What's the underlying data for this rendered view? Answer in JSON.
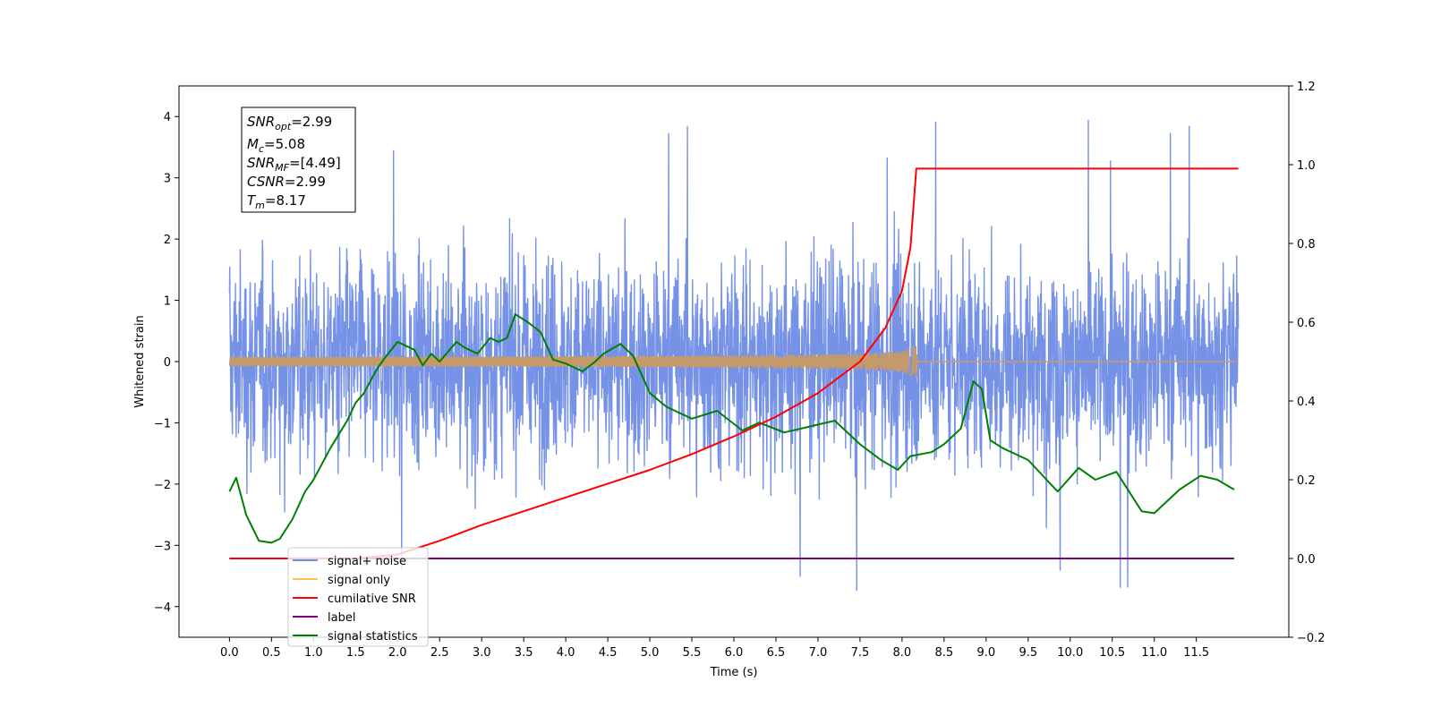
{
  "chart_data": {
    "type": "line",
    "xlabel": "Time (s)",
    "ylabel": "Whitened strain",
    "xlim": [
      -0.6,
      12.6
    ],
    "ylim": [
      -4.5,
      4.5
    ],
    "y2lim": [
      -0.2,
      1.2
    ],
    "grid": false,
    "legend_position": "lower-left",
    "x_ticks": [
      "0.0",
      "0.5",
      "1.0",
      "1.5",
      "2.0",
      "2.5",
      "3.0",
      "3.5",
      "4.0",
      "4.5",
      "5.0",
      "5.5",
      "6.0",
      "6.5",
      "7.0",
      "7.5",
      "8.0",
      "8.5",
      "9.0",
      "9.5",
      "10.0",
      "10.5",
      "11.0",
      "11.5"
    ],
    "y_ticks": [
      "4",
      "3",
      "2",
      "1",
      "0",
      "−1",
      "−2",
      "−3",
      "−4"
    ],
    "y2_ticks": [
      "1.2",
      "1.0",
      "0.8",
      "0.6",
      "0.4",
      "0.2",
      "0.0",
      "−0.2"
    ],
    "info_box": {
      "snr_opt_label": "SNR",
      "snr_opt_sub": "opt",
      "snr_opt_value": "=2.99",
      "mc_label": "M",
      "mc_sub": "c",
      "mc_value": "=5.08",
      "snr_mf_label": "SNR",
      "snr_mf_sub": "MF",
      "snr_mf_value": "=[4.49]",
      "csnr_label": "CSNR",
      "csnr_value": "=2.99",
      "tm_label": "T",
      "tm_sub": "m",
      "tm_value": "=8.17"
    },
    "series": [
      {
        "name": "signal+ noise",
        "color": "#6f8ce6",
        "axis": "left",
        "x_range": [
          0.0,
          12.0
        ],
        "dt": 0.004,
        "y_std": 0.85,
        "y_min": -4.1,
        "y_max": 4.05
      },
      {
        "name": "signal only",
        "color": "#ffc04d",
        "axis": "left",
        "x_range": [
          0.0,
          12.0
        ],
        "merger_time": 8.17,
        "peak_amplitude": 0.35
      },
      {
        "name": "cumilative SNR",
        "color": "#ff0000",
        "axis": "right",
        "x": [
          0.0,
          0.5,
          1.0,
          1.5,
          2.0,
          2.5,
          3.0,
          3.5,
          4.0,
          4.5,
          5.0,
          5.5,
          6.0,
          6.5,
          7.0,
          7.5,
          7.8,
          8.0,
          8.1,
          8.17,
          9.0,
          10.0,
          11.0,
          12.0
        ],
        "y": [
          0.0,
          0.0,
          0.0,
          0.0,
          0.01,
          0.045,
          0.085,
          0.12,
          0.155,
          0.19,
          0.225,
          0.265,
          0.31,
          0.36,
          0.42,
          0.5,
          0.585,
          0.68,
          0.79,
          0.99,
          0.99,
          0.99,
          0.99,
          0.99
        ]
      },
      {
        "name": "label",
        "color": "#800080",
        "axis": "right",
        "x": [
          0.0,
          11.95
        ],
        "y": [
          0.0,
          0.0
        ]
      },
      {
        "name": "signal statistics",
        "color": "#008000",
        "axis": "right",
        "x": [
          0.0,
          0.08,
          0.2,
          0.35,
          0.5,
          0.6,
          0.75,
          0.9,
          1.0,
          1.2,
          1.4,
          1.5,
          1.6,
          1.75,
          1.85,
          2.0,
          2.2,
          2.3,
          2.4,
          2.5,
          2.7,
          2.8,
          2.95,
          3.1,
          3.2,
          3.3,
          3.4,
          3.55,
          3.7,
          3.85,
          4.0,
          4.2,
          4.35,
          4.45,
          4.65,
          4.8,
          5.0,
          5.2,
          5.5,
          5.8,
          6.1,
          6.3,
          6.6,
          6.9,
          7.2,
          7.5,
          7.75,
          7.95,
          8.1,
          8.35,
          8.5,
          8.7,
          8.85,
          8.95,
          9.05,
          9.2,
          9.5,
          9.85,
          10.1,
          10.3,
          10.55,
          10.85,
          11.0,
          11.3,
          11.55,
          11.75,
          11.95
        ],
        "y": [
          0.17,
          0.205,
          0.11,
          0.045,
          0.04,
          0.05,
          0.1,
          0.17,
          0.2,
          0.28,
          0.35,
          0.395,
          0.42,
          0.48,
          0.51,
          0.55,
          0.53,
          0.49,
          0.52,
          0.5,
          0.55,
          0.535,
          0.52,
          0.56,
          0.55,
          0.56,
          0.62,
          0.6,
          0.575,
          0.505,
          0.495,
          0.475,
          0.5,
          0.52,
          0.545,
          0.515,
          0.42,
          0.385,
          0.355,
          0.375,
          0.325,
          0.345,
          0.32,
          0.335,
          0.35,
          0.29,
          0.25,
          0.225,
          0.26,
          0.27,
          0.29,
          0.33,
          0.45,
          0.43,
          0.3,
          0.28,
          0.25,
          0.17,
          0.23,
          0.2,
          0.22,
          0.12,
          0.115,
          0.175,
          0.21,
          0.2,
          0.175
        ]
      }
    ]
  }
}
